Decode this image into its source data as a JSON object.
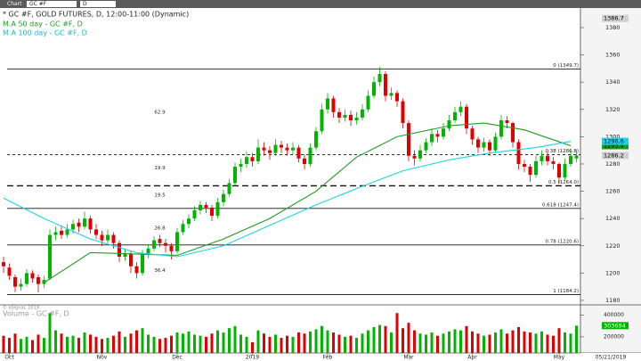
{
  "toolbar": {
    "title": "Chart",
    "symbol": "GC #F",
    "interval": "D"
  },
  "chart_data": {
    "type": "candlestick",
    "title": "* GC #F, GOLD FUTURES, D, 12:00-11:00 (Dynamic)",
    "categories": [
      null,
      "Oct",
      null,
      null,
      null,
      null,
      null,
      null,
      null,
      null,
      null,
      null,
      null,
      null,
      null,
      null,
      null,
      "Nov",
      null,
      null,
      null,
      null,
      null,
      null,
      null,
      null,
      null,
      null,
      null,
      null,
      "Dec",
      null,
      null,
      null,
      null,
      null,
      null,
      null,
      null,
      null,
      null,
      null,
      null,
      "2019",
      null,
      null,
      null,
      null,
      null,
      null,
      null,
      null,
      null,
      null,
      null,
      null,
      "Feb",
      null,
      null,
      null,
      null,
      null,
      null,
      null,
      null,
      null,
      null,
      null,
      null,
      null,
      "Mar",
      null,
      null,
      null,
      null,
      null,
      null,
      null,
      null,
      null,
      null,
      "Apr",
      null,
      null,
      null,
      null,
      null,
      null,
      null,
      null,
      null,
      null,
      null,
      null,
      null,
      null,
      "May",
      null,
      null,
      null
    ],
    "ohlc": [
      [
        1208,
        1212,
        1200,
        1205
      ],
      [
        1204,
        1207,
        1195,
        1198
      ],
      [
        1197,
        1199,
        1186,
        1190
      ],
      [
        1190,
        1196,
        1187,
        1192
      ],
      [
        1192,
        1203,
        1190,
        1200
      ],
      [
        1200,
        1202,
        1193,
        1196
      ],
      [
        1197,
        1199,
        1186,
        1192
      ],
      [
        1192,
        1198,
        1189,
        1195
      ],
      [
        1196,
        1232,
        1195,
        1228
      ],
      [
        1228,
        1234,
        1224,
        1230
      ],
      [
        1231,
        1235,
        1225,
        1228
      ],
      [
        1228,
        1236,
        1226,
        1232
      ],
      [
        1232,
        1239,
        1229,
        1236
      ],
      [
        1237,
        1240,
        1230,
        1234
      ],
      [
        1234,
        1245,
        1232,
        1240
      ],
      [
        1240,
        1242,
        1229,
        1232
      ],
      [
        1232,
        1236,
        1225,
        1228
      ],
      [
        1228,
        1231,
        1220,
        1224
      ],
      [
        1224,
        1232,
        1222,
        1228
      ],
      [
        1228,
        1230,
        1218,
        1222
      ],
      [
        1222,
        1224,
        1208,
        1212
      ],
      [
        1212,
        1218,
        1209,
        1214
      ],
      [
        1214,
        1216,
        1200,
        1205
      ],
      [
        1205,
        1208,
        1196,
        1200
      ],
      [
        1200,
        1217,
        1198,
        1214
      ],
      [
        1214,
        1221,
        1211,
        1218
      ],
      [
        1218,
        1227,
        1216,
        1224
      ],
      [
        1225,
        1228,
        1219,
        1222
      ],
      [
        1222,
        1225,
        1215,
        1220
      ],
      [
        1220,
        1222,
        1210,
        1216
      ],
      [
        1216,
        1233,
        1214,
        1230
      ],
      [
        1230,
        1239,
        1228,
        1236
      ],
      [
        1236,
        1243,
        1233,
        1240
      ],
      [
        1240,
        1249,
        1238,
        1246
      ],
      [
        1246,
        1253,
        1243,
        1250
      ],
      [
        1250,
        1252,
        1244,
        1248
      ],
      [
        1248,
        1250,
        1238,
        1242
      ],
      [
        1242,
        1255,
        1240,
        1252
      ],
      [
        1252,
        1261,
        1249,
        1258
      ],
      [
        1258,
        1269,
        1256,
        1266
      ],
      [
        1266,
        1281,
        1264,
        1278
      ],
      [
        1278,
        1284,
        1274,
        1280
      ],
      [
        1280,
        1289,
        1277,
        1285
      ],
      [
        1285,
        1288,
        1278,
        1282
      ],
      [
        1282,
        1298,
        1280,
        1292
      ],
      [
        1292,
        1296,
        1286,
        1290
      ],
      [
        1290,
        1293,
        1283,
        1288
      ],
      [
        1288,
        1298,
        1286,
        1294
      ],
      [
        1294,
        1297,
        1288,
        1292
      ],
      [
        1292,
        1295,
        1286,
        1290
      ],
      [
        1290,
        1296,
        1287,
        1292
      ],
      [
        1292,
        1294,
        1281,
        1284
      ],
      [
        1284,
        1287,
        1276,
        1280
      ],
      [
        1280,
        1295,
        1278,
        1292
      ],
      [
        1292,
        1307,
        1290,
        1304
      ],
      [
        1304,
        1324,
        1302,
        1320
      ],
      [
        1320,
        1332,
        1317,
        1328
      ],
      [
        1328,
        1330,
        1314,
        1318
      ],
      [
        1318,
        1321,
        1310,
        1314
      ],
      [
        1314,
        1320,
        1311,
        1316
      ],
      [
        1316,
        1319,
        1308,
        1312
      ],
      [
        1312,
        1318,
        1309,
        1314
      ],
      [
        1314,
        1324,
        1312,
        1320
      ],
      [
        1320,
        1334,
        1318,
        1330
      ],
      [
        1330,
        1344,
        1328,
        1340
      ],
      [
        1340,
        1351,
        1337,
        1346
      ],
      [
        1346,
        1348,
        1326,
        1330
      ],
      [
        1330,
        1336,
        1327,
        1332
      ],
      [
        1332,
        1334,
        1322,
        1326
      ],
      [
        1326,
        1328,
        1306,
        1310
      ],
      [
        1310,
        1312,
        1282,
        1286
      ],
      [
        1286,
        1290,
        1279,
        1284
      ],
      [
        1284,
        1294,
        1282,
        1290
      ],
      [
        1290,
        1299,
        1288,
        1296
      ],
      [
        1296,
        1306,
        1293,
        1302
      ],
      [
        1302,
        1305,
        1296,
        1300
      ],
      [
        1300,
        1310,
        1298,
        1306
      ],
      [
        1306,
        1316,
        1304,
        1312
      ],
      [
        1312,
        1322,
        1310,
        1318
      ],
      [
        1318,
        1326,
        1315,
        1322
      ],
      [
        1322,
        1324,
        1302,
        1306
      ],
      [
        1306,
        1308,
        1294,
        1298
      ],
      [
        1298,
        1300,
        1288,
        1292
      ],
      [
        1292,
        1299,
        1289,
        1296
      ],
      [
        1296,
        1298,
        1286,
        1290
      ],
      [
        1290,
        1303,
        1288,
        1300
      ],
      [
        1300,
        1316,
        1298,
        1312
      ],
      [
        1312,
        1315,
        1306,
        1310
      ],
      [
        1310,
        1311,
        1292,
        1296
      ],
      [
        1296,
        1298,
        1276,
        1280
      ],
      [
        1280,
        1283,
        1274,
        1278
      ],
      [
        1278,
        1280,
        1267,
        1272
      ],
      [
        1272,
        1286,
        1270,
        1282
      ],
      [
        1282,
        1290,
        1279,
        1286
      ],
      [
        1286,
        1289,
        1279,
        1282
      ],
      [
        1282,
        1285,
        1276,
        1280
      ],
      [
        1280,
        1281,
        1266,
        1270
      ],
      [
        1270,
        1284,
        1268,
        1280
      ],
      [
        1280,
        1290,
        1278,
        1286
      ],
      [
        1284,
        1290,
        1281,
        1286.2
      ]
    ],
    "up_color": "#00b400",
    "down_color": "#e00000",
    "ylim": [
      1176.7,
      1393.7
    ],
    "yticks": [
      1180,
      1200,
      1220,
      1240,
      1260,
      1280,
      1300,
      1320,
      1340,
      1360,
      1380
    ],
    "price_tags": [
      {
        "value": 1386.7,
        "color": "#d0d0d0"
      }
    ],
    "series": [
      {
        "name": "M.A 50 day - GC #F, D",
        "color": "#1f9a1f",
        "x": [
          7,
          15,
          30,
          38,
          46,
          54,
          61,
          68,
          77,
          83,
          90,
          98
        ],
        "values": [
          1193,
          1215,
          1213,
          1225,
          1240,
          1260,
          1285,
          1300,
          1308,
          1310,
          1305,
          1293.4
        ]
      },
      {
        "name": "M.A 100 day - GC #F, D",
        "color": "#19d3e6",
        "x": [
          0,
          7,
          15,
          23,
          30,
          38,
          46,
          54,
          61,
          69,
          77,
          84,
          92,
          98
        ],
        "values": [
          1255,
          1240,
          1225,
          1215,
          1212,
          1220,
          1235,
          1250,
          1262,
          1275,
          1283,
          1288,
          1292,
          1296.6
        ]
      }
    ],
    "fib_levels": [
      {
        "value": 1349.7,
        "label": "0 (1349.7)",
        "dashed": false
      },
      {
        "value": 1286.8,
        "label": "0.38 (1286.8)",
        "dashed": true
      },
      {
        "value": 1264.0,
        "label": "0.5 (1264.0)",
        "dashed": true
      },
      {
        "value": 1247.4,
        "label": "0.618 (1247.4)",
        "dashed": false
      },
      {
        "value": 1220.6,
        "label": "0.78 (1220.6)",
        "dashed": false
      },
      {
        "value": 1184.2,
        "label": "1 (1184.2)",
        "dashed": false
      }
    ],
    "annotations": [
      {
        "text": "62.9",
        "x": 27,
        "y": 1318
      },
      {
        "text": "19.9",
        "x": 27,
        "y": 1277
      },
      {
        "text": "19.5",
        "x": 27,
        "y": 1257
      },
      {
        "text": "26.8",
        "x": 27,
        "y": 1233
      },
      {
        "text": "36.4",
        "x": 27,
        "y": 1202
      }
    ],
    "volume": {
      "title": "Volume - GC #F, D",
      "credit": "© eSignal, 2019",
      "ylim": [
        50000,
        480000
      ],
      "yticks": [
        200000,
        400000
      ],
      "values": [
        210000,
        190000,
        230000,
        180000,
        200000,
        170000,
        220000,
        190000,
        420000,
        260000,
        230000,
        200000,
        210000,
        190000,
        240000,
        220000,
        200000,
        180000,
        190000,
        210000,
        250000,
        200000,
        230000,
        260000,
        280000,
        220000,
        200000,
        180000,
        190000,
        210000,
        240000,
        230000,
        250000,
        220000,
        210000,
        200000,
        230000,
        260000,
        240000,
        280000,
        300000,
        220000,
        200000,
        150000,
        260000,
        230000,
        200000,
        220000,
        190000,
        210000,
        200000,
        240000,
        230000,
        250000,
        270000,
        300000,
        260000,
        240000,
        220000,
        200000,
        210000,
        190000,
        230000,
        260000,
        290000,
        310000,
        300000,
        240000,
        420000,
        280000,
        330000,
        260000,
        230000,
        220000,
        240000,
        210000,
        230000,
        250000,
        270000,
        260000,
        300000,
        250000,
        230000,
        210000,
        220000,
        240000,
        270000,
        230000,
        260000,
        290000,
        250000,
        240000,
        230000,
        250000,
        220000,
        210000,
        280000,
        240000,
        230000,
        303694
      ]
    },
    "last_date": "05/21/2019"
  }
}
